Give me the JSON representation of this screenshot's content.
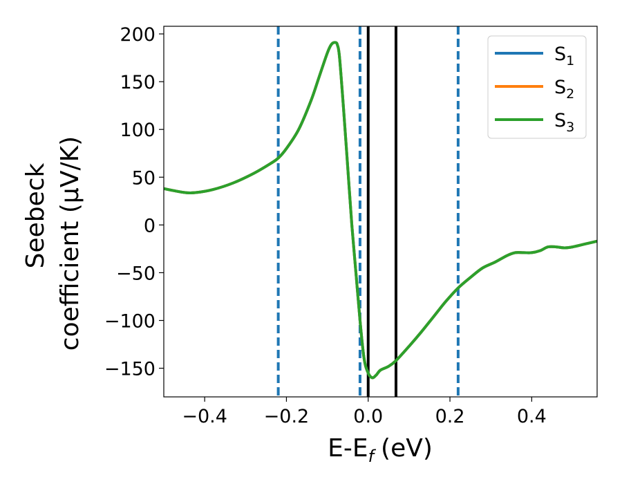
{
  "chart_data": {
    "type": "line",
    "xlabel": "E-E",
    "xlabel_sub": "f",
    "xlabel_unit": "(eV)",
    "ylabel_line1": "Seebeck",
    "ylabel_line2": "coefficient  (μV/K)",
    "xlim": [
      -0.5,
      0.56
    ],
    "ylim": [
      -180,
      208
    ],
    "x_ticks": [
      -0.4,
      -0.2,
      0.0,
      0.2,
      0.4
    ],
    "x_tick_labels": [
      "−0.4",
      "−0.2",
      "0.0",
      "0.2",
      "0.4"
    ],
    "y_ticks": [
      -150,
      -100,
      -50,
      0,
      50,
      100,
      150,
      200
    ],
    "y_tick_labels": [
      "−150",
      "−100",
      "−50",
      "0",
      "50",
      "100",
      "150",
      "200"
    ],
    "grid": false,
    "legend_position": "top-right",
    "series": [
      {
        "name": "S",
        "name_sub": "1",
        "color": "#1f77b4",
        "x": [
          -0.5,
          -0.45,
          -0.42,
          -0.38,
          -0.33,
          -0.28,
          -0.24,
          -0.22,
          -0.2,
          -0.17,
          -0.14,
          -0.12,
          -0.1,
          -0.09,
          -0.08,
          -0.075,
          -0.07,
          -0.06,
          -0.05,
          -0.04,
          -0.03,
          -0.02,
          -0.01,
          0.0,
          0.01,
          0.02,
          0.03,
          0.05,
          0.068,
          0.1,
          0.13,
          0.16,
          0.19,
          0.22,
          0.25,
          0.28,
          0.31,
          0.34,
          0.36,
          0.38,
          0.4,
          0.42,
          0.44,
          0.46,
          0.48,
          0.5,
          0.53,
          0.56
        ],
        "y": [
          38,
          34,
          34,
          37,
          44,
          54,
          64,
          70,
          80,
          100,
          130,
          155,
          180,
          189,
          191,
          188,
          175,
          120,
          60,
          0,
          -50,
          -100,
          -140,
          -155,
          -160,
          -157,
          -152,
          -148,
          -142,
          -127,
          -112,
          -96,
          -80,
          -66,
          -55,
          -45,
          -39,
          -32,
          -29,
          -29,
          -29,
          -27,
          -23,
          -23,
          -24,
          -23,
          -20,
          -17
        ]
      },
      {
        "name": "S",
        "name_sub": "2",
        "color": "#ff7f0e",
        "x": [
          -0.5,
          -0.45,
          -0.42,
          -0.38,
          -0.33,
          -0.28,
          -0.24,
          -0.22,
          -0.2,
          -0.17,
          -0.14,
          -0.12,
          -0.1,
          -0.09,
          -0.08,
          -0.075,
          -0.07,
          -0.06,
          -0.05,
          -0.04,
          -0.03,
          -0.02,
          -0.01,
          0.0,
          0.01,
          0.02,
          0.03,
          0.05,
          0.068,
          0.1,
          0.13,
          0.16,
          0.19,
          0.22,
          0.25,
          0.28,
          0.31,
          0.34,
          0.36,
          0.38,
          0.4,
          0.42,
          0.44,
          0.46,
          0.48,
          0.5,
          0.53,
          0.56
        ],
        "y": [
          38,
          34,
          34,
          37,
          44,
          54,
          64,
          70,
          80,
          100,
          130,
          155,
          180,
          189,
          191,
          188,
          175,
          120,
          60,
          0,
          -50,
          -100,
          -140,
          -155,
          -160,
          -157,
          -152,
          -148,
          -142,
          -127,
          -112,
          -96,
          -80,
          -66,
          -55,
          -45,
          -39,
          -32,
          -29,
          -29,
          -29,
          -27,
          -23,
          -23,
          -24,
          -23,
          -20,
          -17
        ]
      },
      {
        "name": "S",
        "name_sub": "3",
        "color": "#2ca02c",
        "x": [
          -0.5,
          -0.45,
          -0.42,
          -0.38,
          -0.33,
          -0.28,
          -0.24,
          -0.22,
          -0.2,
          -0.17,
          -0.14,
          -0.12,
          -0.1,
          -0.09,
          -0.08,
          -0.075,
          -0.07,
          -0.06,
          -0.05,
          -0.04,
          -0.03,
          -0.02,
          -0.01,
          0.0,
          0.01,
          0.02,
          0.03,
          0.05,
          0.068,
          0.1,
          0.13,
          0.16,
          0.19,
          0.22,
          0.25,
          0.28,
          0.31,
          0.34,
          0.36,
          0.38,
          0.4,
          0.42,
          0.44,
          0.46,
          0.48,
          0.5,
          0.53,
          0.56
        ],
        "y": [
          38,
          34,
          34,
          37,
          44,
          54,
          64,
          70,
          80,
          100,
          130,
          155,
          180,
          189,
          191,
          188,
          175,
          120,
          60,
          0,
          -50,
          -100,
          -140,
          -155,
          -160,
          -157,
          -152,
          -148,
          -142,
          -127,
          -112,
          -96,
          -80,
          -66,
          -55,
          -45,
          -39,
          -32,
          -29,
          -29,
          -29,
          -27,
          -23,
          -23,
          -24,
          -23,
          -20,
          -17
        ]
      }
    ],
    "vlines_dashed": {
      "color": "#1f77b4",
      "x": [
        -0.22,
        -0.02,
        0.22
      ]
    },
    "vlines_solid": {
      "color": "#000000",
      "x": [
        0.0,
        0.068
      ]
    }
  }
}
